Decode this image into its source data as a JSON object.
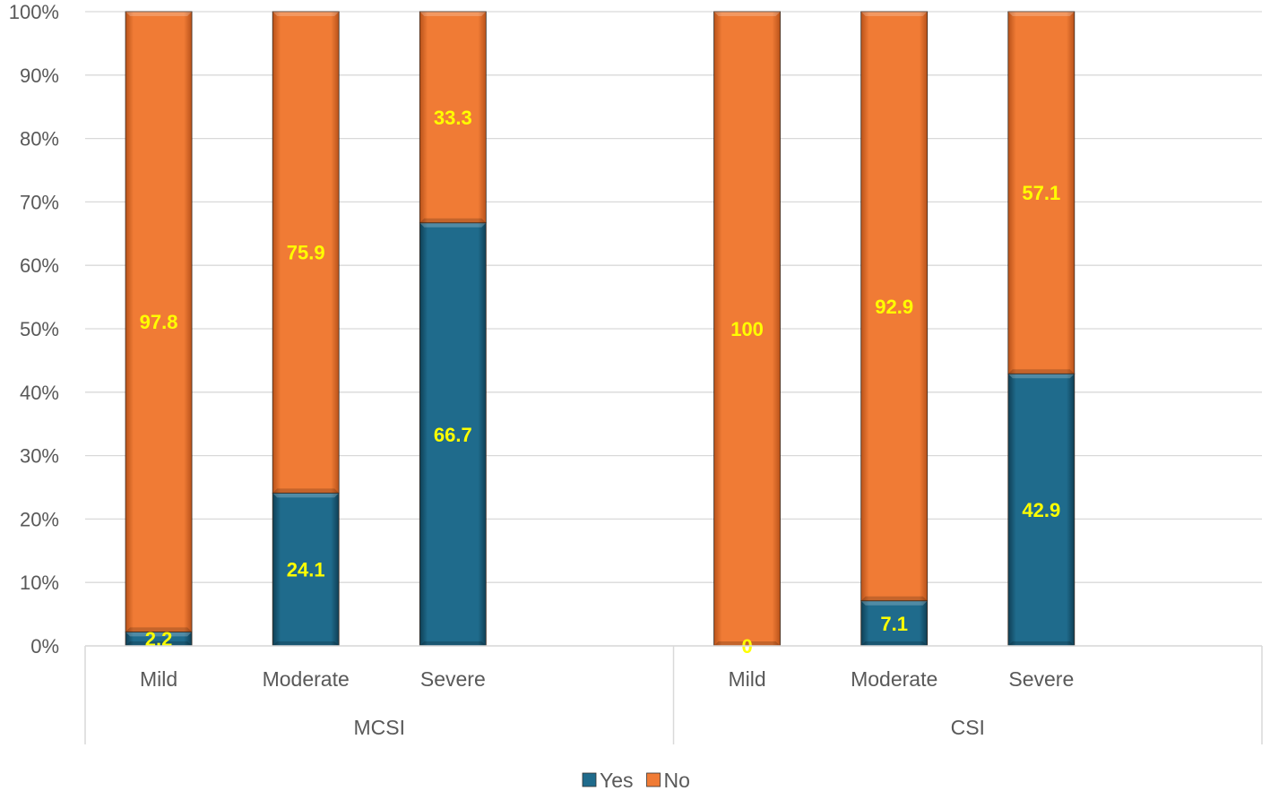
{
  "chart_data": {
    "type": "bar",
    "stacked": true,
    "percent_stacked": true,
    "groups": [
      {
        "name": "MCSI",
        "categories": [
          "Mild",
          "Moderate",
          "Severe"
        ]
      },
      {
        "name": "CSI",
        "categories": [
          "Mild",
          "Moderate",
          "Severe"
        ]
      }
    ],
    "series": [
      {
        "name": "Yes",
        "color": "#1f6b8c",
        "values": [
          2.2,
          24.1,
          66.7,
          0,
          7.1,
          42.9
        ]
      },
      {
        "name": "No",
        "color": "#f07b35",
        "values": [
          97.8,
          75.9,
          33.3,
          100,
          92.9,
          57.1
        ]
      }
    ],
    "y_ticks": [
      "0%",
      "10%",
      "20%",
      "30%",
      "40%",
      "50%",
      "60%",
      "70%",
      "80%",
      "90%",
      "100%"
    ],
    "ylim": [
      0,
      100
    ],
    "grid": true,
    "legend_position": "bottom",
    "data_label_color": "#ffff00",
    "gridline_color": "#d9d9d9",
    "axis_text_color": "#595959"
  }
}
